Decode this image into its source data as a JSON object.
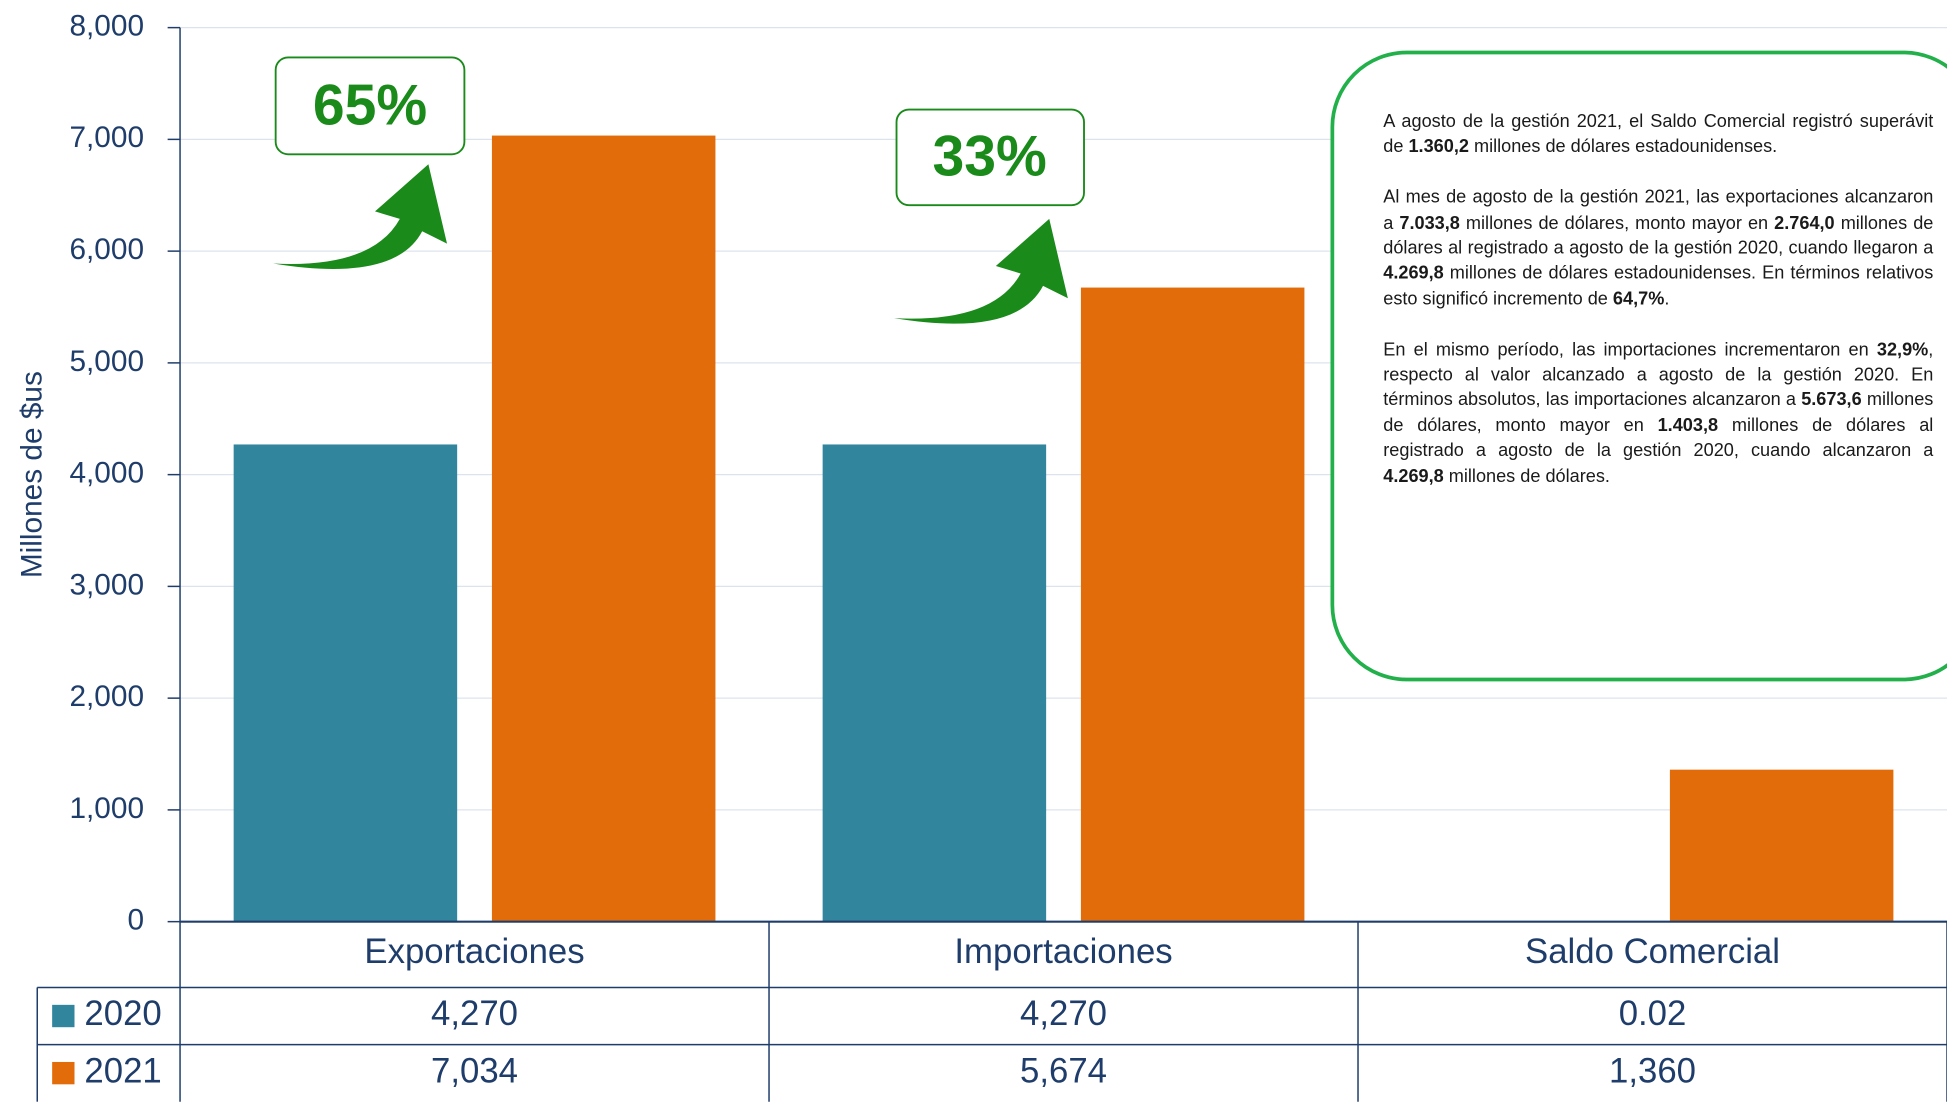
{
  "chart_data": {
    "type": "bar",
    "y_label": "Millones de $us",
    "categories": [
      "Exportaciones",
      "Importaciones",
      "Saldo Comercial"
    ],
    "series": [
      {
        "name": "2020",
        "color": "#31859c",
        "values": [
          4270,
          4270,
          0.02
        ],
        "value_labels": [
          "4,270",
          "4,270",
          "0.02"
        ]
      },
      {
        "name": "2021",
        "color": "#e36c0a",
        "values": [
          7034,
          5674,
          1360
        ],
        "value_labels": [
          "7,034",
          "5,674",
          "1,360"
        ]
      }
    ],
    "ylim": [
      0,
      8000
    ],
    "yticks": [
      0,
      {
        "value": 1000,
        "label": "1,000"
      },
      {
        "value": 2000,
        "label": "2,000"
      },
      {
        "value": 3000,
        "label": "3,000"
      },
      {
        "value": 4000,
        "label": "4,000"
      },
      {
        "value": 5000,
        "label": "5,000"
      },
      {
        "value": 6000,
        "label": "6,000"
      },
      {
        "value": 7000,
        "label": "7,000"
      },
      {
        "value": 8000,
        "label": "8,000"
      }
    ],
    "grid": true,
    "annotations": [
      "65%",
      "33%"
    ],
    "note": [
      [
        "A agosto de la gestión 2021, el Saldo Comercial registró superávit de ",
        "1.360,2",
        " millones de dólares estadounidenses."
      ],
      [
        "Al mes de agosto de la gestión 2021, las exportaciones alcanzaron a ",
        "7.033,8",
        " millones de dólares, monto mayor en ",
        "2.764,0",
        " millones de dólares al registrado a agosto de la gestión 2020, cuando llegaron a ",
        "4.269,8",
        " millones de dólares estadounidenses. En términos relativos esto significó incremento de ",
        "64,7%",
        "."
      ],
      [
        "En el mismo período, las importaciones incrementaron en ",
        "32,9%",
        ", respecto al valor alcanzado a agosto de la gestión 2020. En términos absolutos, las importaciones alcanzaron a ",
        "5.673,6",
        " millones de dólares, monto mayor en ",
        "1.403,8",
        " millones de dólares al registrado a agosto de la gestión 2020, cuando alcanzaron a ",
        "4.269,8",
        " millones de dólares."
      ]
    ]
  }
}
